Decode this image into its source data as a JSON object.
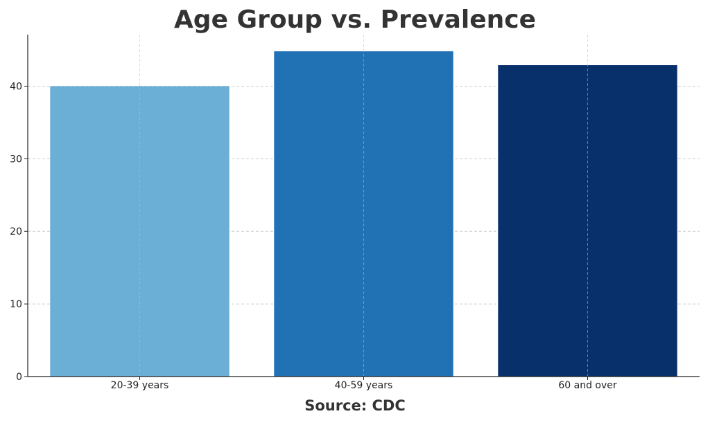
{
  "chart_data": {
    "type": "bar",
    "title": "Age Group vs. Prevalence",
    "xlabel": "Source: CDC",
    "ylabel": "",
    "categories": [
      "20-39 years",
      "40-59 years",
      "60 and over"
    ],
    "values": [
      40.0,
      44.8,
      42.9
    ],
    "colors": [
      "#6baed6",
      "#2171b5",
      "#08306b"
    ],
    "ylim": [
      0,
      47.1
    ],
    "yticks": [
      0,
      10,
      20,
      30,
      40
    ],
    "grid": true,
    "legend": "none"
  }
}
